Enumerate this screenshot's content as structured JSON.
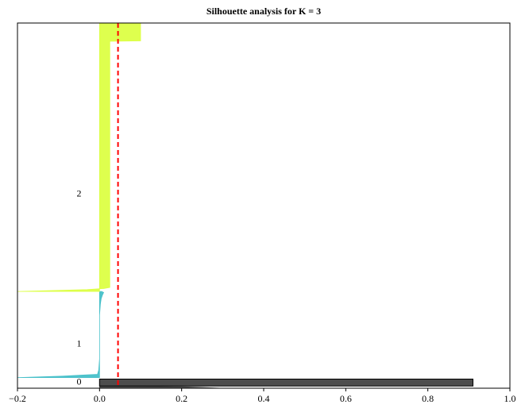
{
  "chart_data": {
    "type": "silhouette",
    "title": "Silhouette analysis for K = 3",
    "xlabel": "",
    "ylabel": "",
    "xlim": [
      -0.2,
      1.0
    ],
    "ylim": [
      0,
      100
    ],
    "x_ticks": [
      -0.2,
      0.0,
      0.2,
      0.4,
      0.6,
      0.8,
      1.0
    ],
    "x_tick_labels": [
      "−0.2",
      "0.0",
      "0.2",
      "0.4",
      "0.6",
      "0.8",
      "1.0"
    ],
    "grid": false,
    "average_silhouette": 0.045,
    "average_line_color": "#ff0000",
    "clusters": [
      {
        "label": "0",
        "color": "#4d4d4d",
        "y_start": 0.0,
        "y_end": 2.5,
        "label_y": 1.9,
        "profile": [
          {
            "y": 0.0,
            "x": 0.3
          },
          {
            "y": 0.2,
            "x": 0.25
          },
          {
            "y": 0.4,
            "x": 0.2
          },
          {
            "y": 0.6,
            "x": 0.0
          },
          {
            "y": 2.5,
            "x": 0.0
          }
        ],
        "bar": {
          "x_start": 0.0,
          "x_end": 0.91,
          "y_start": 0.6,
          "y_end": 2.5
        }
      },
      {
        "label": "1",
        "color": "#47c0c9",
        "y_start": 2.9,
        "y_end": 26.5,
        "label_y": 12.3,
        "profile": [
          {
            "y": 2.9,
            "x": -0.2
          },
          {
            "y": 3.3,
            "x": -0.09
          },
          {
            "y": 3.6,
            "x": -0.04
          },
          {
            "y": 3.8,
            "x": -0.005
          },
          {
            "y": 5.0,
            "x": -0.002
          },
          {
            "y": 8.0,
            "x": 0.0
          },
          {
            "y": 14.0,
            "x": 0.0
          },
          {
            "y": 20.0,
            "x": 0.0
          },
          {
            "y": 23.0,
            "x": 0.002
          },
          {
            "y": 24.5,
            "x": 0.004
          },
          {
            "y": 25.5,
            "x": 0.007
          },
          {
            "y": 26.2,
            "x": 0.01
          },
          {
            "y": 26.5,
            "x": 0.005
          }
        ]
      },
      {
        "label": "2",
        "color": "#dcff44",
        "y_start": 26.5,
        "y_end": 100.0,
        "label_y": 53.4,
        "profile": [
          {
            "y": 26.5,
            "x": -0.2
          },
          {
            "y": 26.8,
            "x": -0.1
          },
          {
            "y": 27.0,
            "x": -0.03
          },
          {
            "y": 27.3,
            "x": 0.01
          },
          {
            "y": 27.6,
            "x": 0.025
          },
          {
            "y": 95.0,
            "x": 0.025
          },
          {
            "y": 95.1,
            "x": 0.1
          },
          {
            "y": 100.0,
            "x": 0.1
          }
        ]
      }
    ]
  }
}
